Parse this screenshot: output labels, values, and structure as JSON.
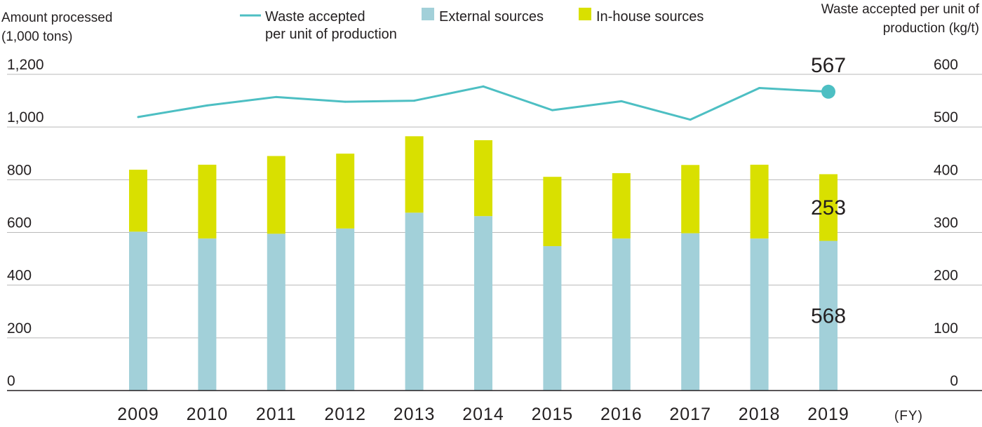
{
  "chart_data": {
    "type": "bar",
    "stacked": true,
    "categories": [
      "2009",
      "2010",
      "2011",
      "2012",
      "2013",
      "2014",
      "2015",
      "2016",
      "2017",
      "2018",
      "2019"
    ],
    "x_unit": "(FY)",
    "series": [
      {
        "name": "External sources",
        "axis": "left",
        "color": "#a2d0d9",
        "values": [
          603,
          577,
          595,
          615,
          675,
          662,
          548,
          577,
          597,
          577,
          568
        ]
      },
      {
        "name": "In-house sources",
        "axis": "left",
        "color": "#d9e000",
        "values": [
          235,
          280,
          295,
          284,
          290,
          288,
          263,
          248,
          259,
          280,
          253
        ]
      },
      {
        "name": "Waste accepted per unit of production",
        "legend_lines": [
          "Waste accepted",
          "per unit of production"
        ],
        "type": "line",
        "axis": "right",
        "color": "#4dbfc3",
        "values": [
          519,
          541,
          557,
          548,
          550,
          577,
          532,
          549,
          514,
          574,
          567
        ]
      }
    ],
    "left_axis": {
      "title_lines": [
        "Amount processed",
        "(1,000 tons)"
      ],
      "ylim": [
        0,
        1200
      ],
      "ticks": [
        0,
        200,
        400,
        600,
        800,
        1000,
        1200
      ],
      "tick_labels": [
        "0",
        "200",
        "400",
        "600",
        "800",
        "1,000",
        "1,200"
      ]
    },
    "right_axis": {
      "title_lines": [
        "Waste accepted per unit of",
        "production (kg/t)"
      ],
      "ylim": [
        0,
        600
      ],
      "ticks": [
        0,
        100,
        200,
        300,
        400,
        500,
        600
      ],
      "tick_labels": [
        "0",
        "100",
        "200",
        "300",
        "400",
        "500",
        "600"
      ]
    },
    "annotations": [
      {
        "text": "567",
        "series": "Waste accepted per unit of production",
        "category": "2019"
      },
      {
        "text": "253",
        "series": "In-house sources",
        "category": "2019"
      },
      {
        "text": "568",
        "series": "External sources",
        "category": "2019"
      }
    ],
    "grid": true,
    "legend_position": "top"
  }
}
